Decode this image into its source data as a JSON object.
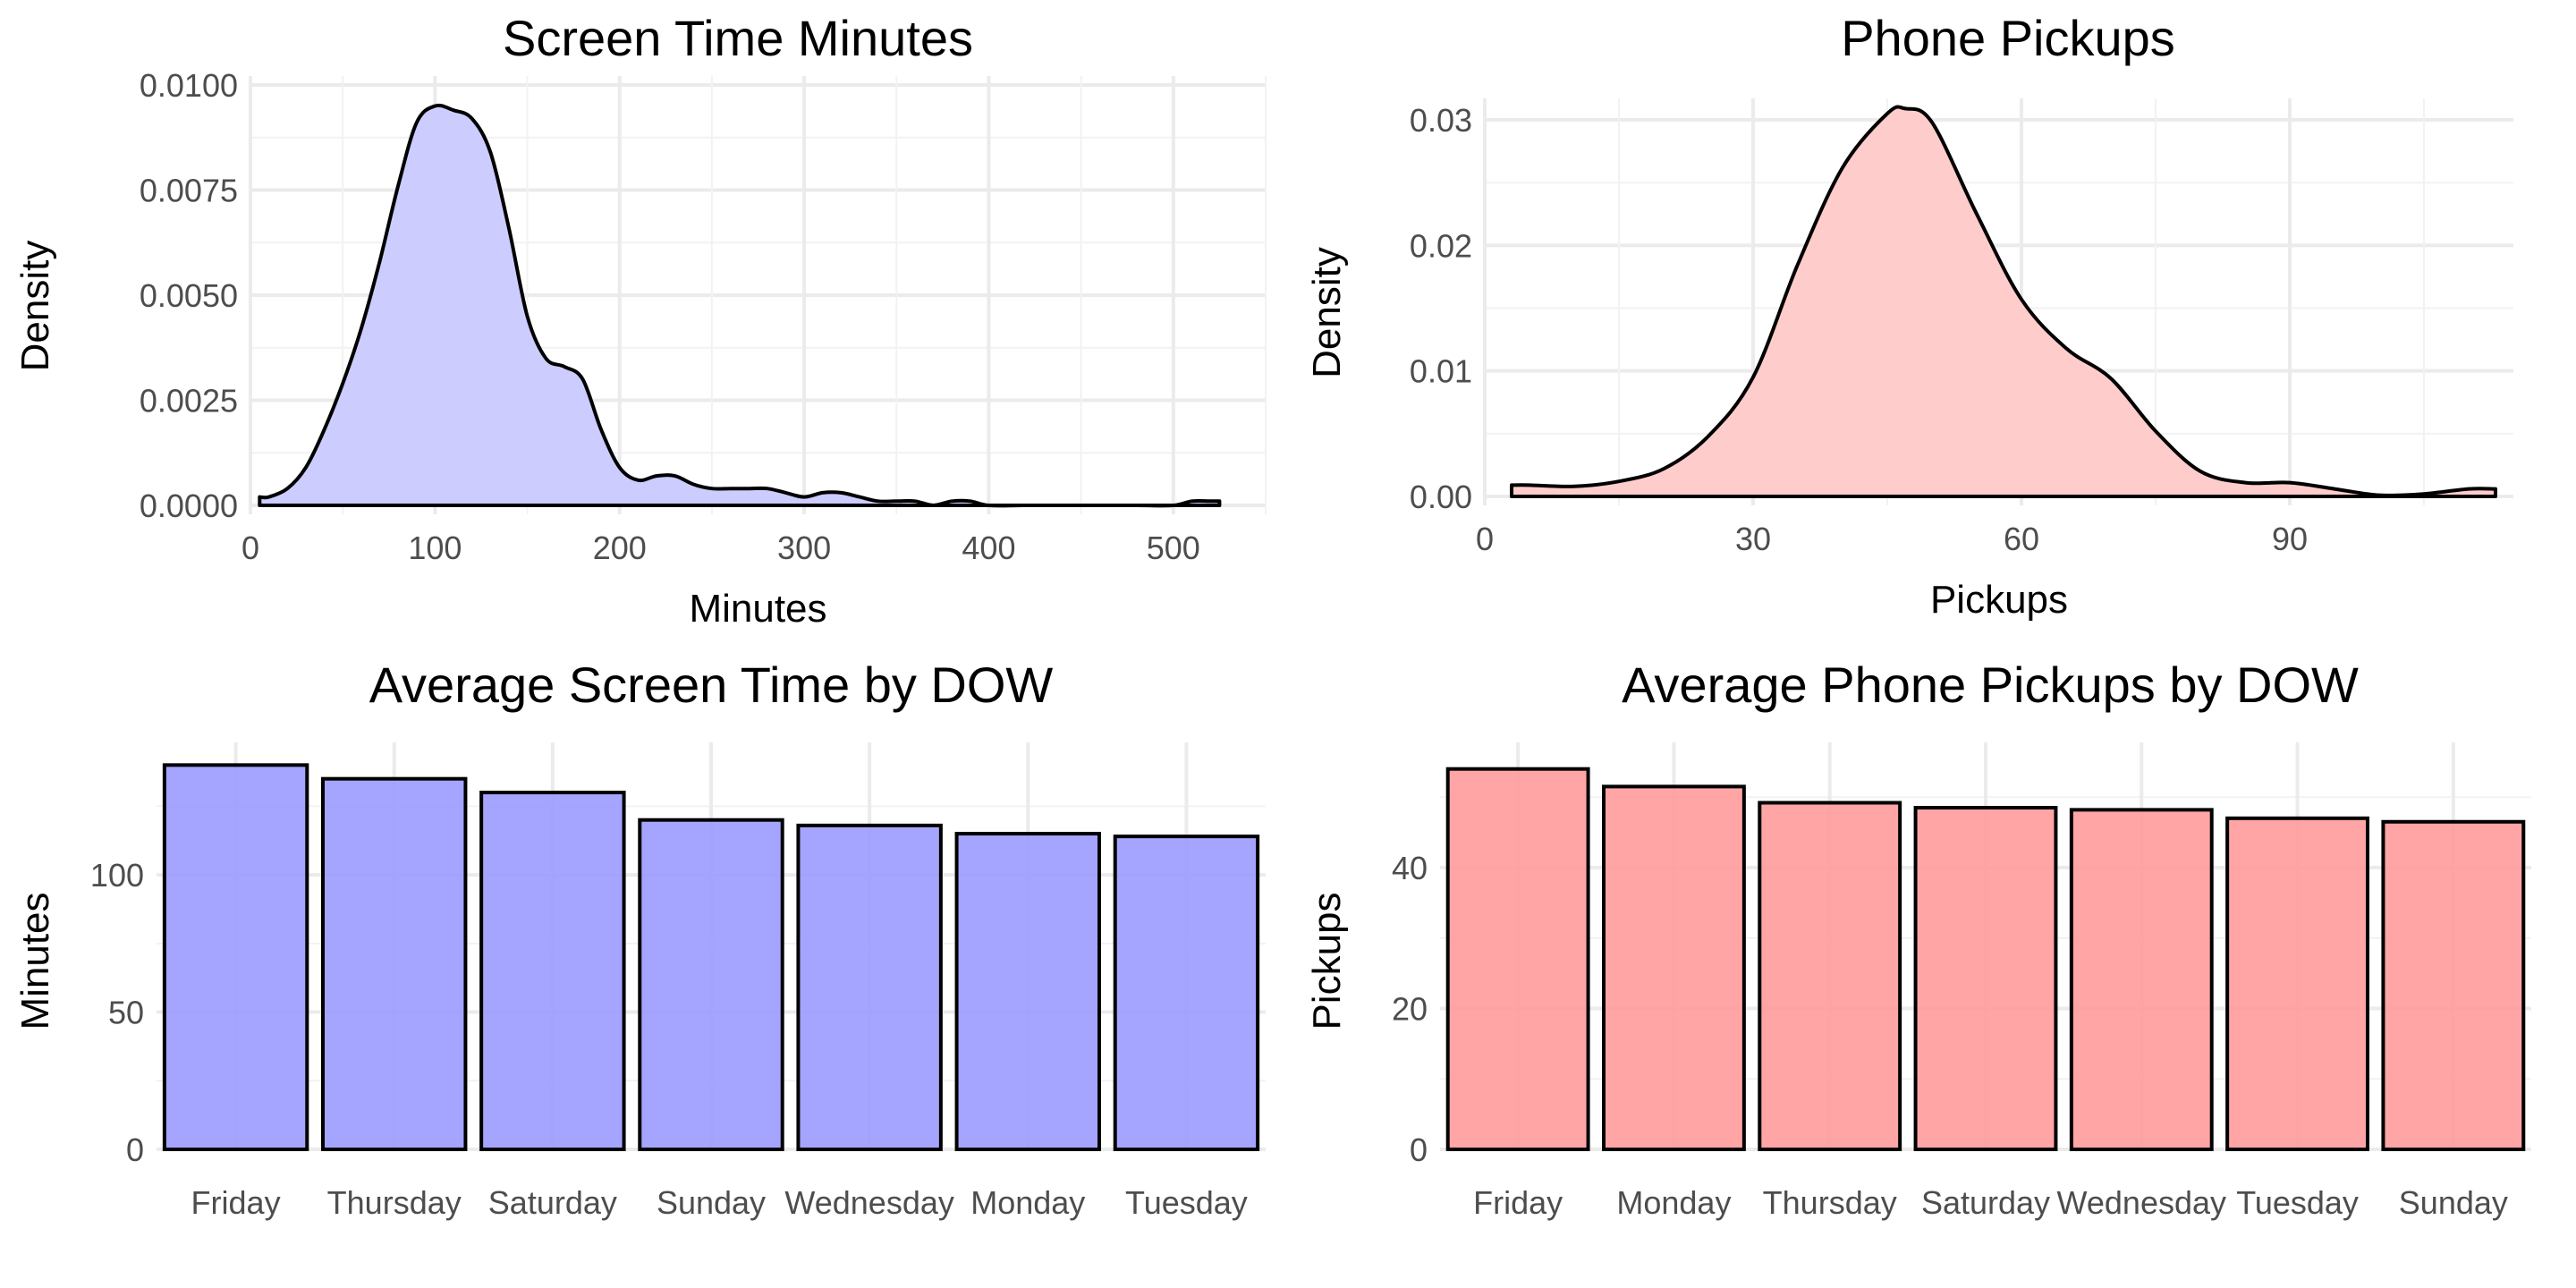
{
  "chart_data": [
    {
      "type": "area",
      "title": "Screen Time Minutes",
      "xlabel": "Minutes",
      "ylabel": "Density",
      "xlim": [
        0,
        550
      ],
      "ylim": [
        0,
        0.01
      ],
      "xticks": [
        0,
        100,
        200,
        300,
        400,
        500
      ],
      "yticks": [
        0,
        0.0025,
        0.005,
        0.0075,
        0.01
      ],
      "ytick_labels": [
        "0.0000",
        "0.0025",
        "0.0050",
        "0.0075",
        "0.0100"
      ],
      "grid": true,
      "fill_color": "#ccccff",
      "line_color": "#000000",
      "series": [
        {
          "x": [
            5,
            10,
            20,
            30,
            40,
            50,
            60,
            70,
            80,
            90,
            100,
            110,
            120,
            130,
            140,
            150,
            160,
            170,
            180,
            190,
            200,
            210,
            220,
            230,
            240,
            250,
            260,
            270,
            280,
            290,
            300,
            310,
            320,
            330,
            340,
            350,
            360,
            370,
            380,
            390,
            400,
            420,
            450,
            480,
            500,
            510,
            520,
            525
          ],
          "y": [
            0.0002,
            0.0002,
            0.0004,
            0.0009,
            0.0018,
            0.0029,
            0.0042,
            0.0058,
            0.0076,
            0.0091,
            0.0095,
            0.0094,
            0.0092,
            0.0084,
            0.0066,
            0.0045,
            0.0035,
            0.0033,
            0.003,
            0.0018,
            0.0009,
            0.0006,
            0.0007,
            0.0007,
            0.0005,
            0.0004,
            0.0004,
            0.0004,
            0.0004,
            0.0003,
            0.0002,
            0.0003,
            0.0003,
            0.0002,
            0.0001,
            0.0001,
            0.0001,
            0.0,
            0.0001,
            0.0001,
            0.0,
            0.0,
            0.0,
            0.0,
            0.0,
            0.0001,
            0.0001,
            0.0001
          ]
        }
      ]
    },
    {
      "type": "area",
      "title": "Phone Pickups",
      "xlabel": "Pickups",
      "ylabel": "Density",
      "xlim": [
        0,
        115
      ],
      "ylim": [
        0,
        0.031
      ],
      "xticks": [
        0,
        30,
        60,
        90
      ],
      "yticks": [
        0,
        0.01,
        0.02,
        0.03
      ],
      "ytick_labels": [
        "0.00",
        "0.01",
        "0.02",
        "0.03"
      ],
      "grid": true,
      "fill_color": "#ffcccc",
      "line_color": "#000000",
      "series": [
        {
          "x": [
            3,
            5,
            10,
            15,
            20,
            25,
            30,
            35,
            40,
            45,
            47,
            50,
            55,
            60,
            65,
            70,
            75,
            80,
            85,
            90,
            95,
            100,
            105,
            110,
            113
          ],
          "y": [
            0.0009,
            0.0009,
            0.0008,
            0.0012,
            0.0022,
            0.0048,
            0.0095,
            0.0185,
            0.0262,
            0.0305,
            0.0309,
            0.0298,
            0.0225,
            0.0157,
            0.0118,
            0.0094,
            0.0052,
            0.002,
            0.0011,
            0.0011,
            0.0006,
            0.0001,
            0.0002,
            0.0006,
            0.0006
          ]
        }
      ]
    },
    {
      "type": "bar",
      "title": "Average Screen Time by DOW",
      "xlabel": "",
      "ylabel": "Minutes",
      "ylim": [
        0,
        145
      ],
      "yticks": [
        0,
        50,
        100
      ],
      "categories": [
        "Friday",
        "Thursday",
        "Saturday",
        "Sunday",
        "Wednesday",
        "Monday",
        "Tuesday"
      ],
      "values": [
        140,
        135,
        130,
        120,
        118,
        115,
        114
      ],
      "grid": true,
      "bar_color": "#9999ff",
      "line_color": "#000000"
    },
    {
      "type": "bar",
      "title": "Average Phone Pickups by DOW",
      "xlabel": "",
      "ylabel": "Pickups",
      "ylim": [
        0,
        56.5
      ],
      "yticks": [
        0,
        20,
        40
      ],
      "categories": [
        "Friday",
        "Monday",
        "Thursday",
        "Saturday",
        "Wednesday",
        "Tuesday",
        "Sunday"
      ],
      "values": [
        54,
        51.5,
        49.2,
        48.5,
        48.2,
        47,
        46.5
      ],
      "grid": true,
      "bar_color": "#ff9999",
      "line_color": "#000000"
    }
  ]
}
